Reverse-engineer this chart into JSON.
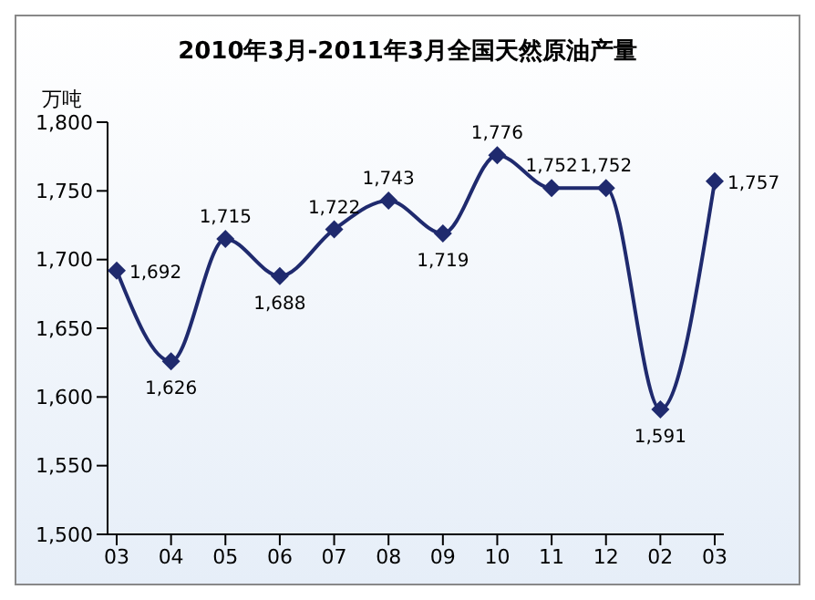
{
  "chart_data": {
    "type": "line",
    "title": "2010年3月-2011年3月全国天然原油产量",
    "ylabel": "万吨",
    "categories": [
      "03",
      "04",
      "05",
      "06",
      "07",
      "08",
      "09",
      "10",
      "11",
      "12",
      "02",
      "03"
    ],
    "series": [
      {
        "color": "#1f2a6e",
        "values": [
          1692,
          1626,
          1715,
          1688,
          1722,
          1743,
          1719,
          1776,
          1752,
          1752,
          1591,
          1757
        ],
        "value_labels": [
          "1,692",
          "1,626",
          "1,715",
          "1,688",
          "1,722",
          "1,743",
          "1,719",
          "1,776",
          "1,752",
          "1,752",
          "1,591",
          "1,757"
        ]
      }
    ],
    "ylim": [
      1500,
      1800
    ],
    "yticks": [
      {
        "value": 1500,
        "label": "1,500"
      },
      {
        "value": 1550,
        "label": "1,550"
      },
      {
        "value": 1600,
        "label": "1,600"
      },
      {
        "value": 1650,
        "label": "1,650"
      },
      {
        "value": 1700,
        "label": "1,700"
      },
      {
        "value": 1750,
        "label": "1,750"
      },
      {
        "value": 1800,
        "label": "1,800"
      }
    ],
    "grid": false,
    "legend": false,
    "marker": "diamond",
    "line_style": "solid"
  }
}
